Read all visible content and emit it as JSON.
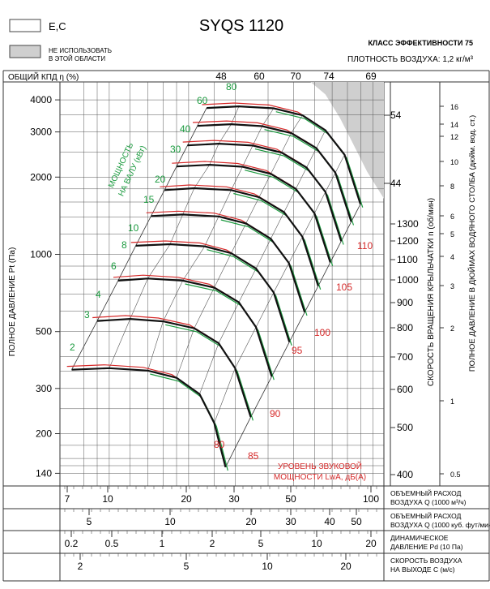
{
  "header": {
    "legend_white_label": "E,C",
    "legend_grey_label_1": "НЕ ИСПОЛЬЗОВАТЬ",
    "legend_grey_label_2": "В ЭТОЙ ОБЛАСТИ",
    "model": "SYQS 1120",
    "efficiency_class": "КЛАСС ЭФФЕКТИВНОСТИ 75",
    "air_density": "ПЛОТНОСТЬ ВОЗДУХА: 1,2 кг/м³"
  },
  "colors": {
    "speed_curve": "#111111",
    "efficiency_curve": "#d62a2a",
    "power_curve": "#1a9a3e",
    "power_label": "#1a9a3e",
    "sound_label": "#d62a2a",
    "grid": "#555555",
    "forbidden_area": "#cfcfcf"
  },
  "chart_data": {
    "type": "line",
    "title": "SYQS 1120",
    "ylabel_left": "ПОЛНОЕ ДАВЛЕНИЕ Pt (Па)",
    "ylabel_right_1": "СКОРОСТЬ ВРАЩЕНИЯ КРЫЛЬЧАТКИ  n (об/мин)",
    "ylabel_right_2": "ПОЛНОЕ ДАВЛЕНИЕ В ДЮЙМАХ ВОДЯНОГО СТОЛБА (дюйм. вод. ст.)",
    "efficiency_axis_label": "ОБЩИЙ КПД η (%)",
    "power_axis_label_1": "МОЩНОСТЬ",
    "power_axis_label_2": "НА ВАЛУ (кВт)",
    "sound_axis_label_1": "УРОВЕНЬ ЗВУКОВОЙ",
    "sound_axis_label_2": "МОЩНОСТИ LwA, дБ(А)",
    "log_scale": true,
    "pressure_ticks": [
      140,
      200,
      300,
      500,
      1000,
      2000,
      3000,
      4000
    ],
    "inch_ticks": [
      "0.5",
      "1",
      "2",
      "3",
      "4",
      "5",
      "6",
      "8",
      "10",
      "12",
      "14",
      "16"
    ],
    "rpm_ticks": [
      "400",
      "500",
      "600",
      "700",
      "800",
      "900",
      "1000",
      "1100",
      "1200",
      "1300"
    ],
    "rpm_extra_ticks": [
      "44",
      "54"
    ],
    "efficiency_ticks": [
      "48",
      "60",
      "70",
      "74",
      "69"
    ],
    "power_labels": [
      "2",
      "3",
      "4",
      "6",
      "8",
      "10",
      "15",
      "20",
      "30",
      "40",
      "60",
      "80"
    ],
    "sound_labels": [
      "80",
      "85",
      "90",
      "95",
      "100",
      "105",
      "110"
    ],
    "xaxes": [
      {
        "label": [
          "ОБЪЕМНЫЙ РАСХОД",
          "ВОЗДУХА Q (1000 м³/ч)"
        ],
        "ticks": [
          "7",
          "10",
          "20",
          "30",
          "50",
          "100"
        ]
      },
      {
        "label": [
          "ОБЪЕМНЫЙ РАСХОД",
          "ВОЗДУХА Q (1000 куб. фут/мин)"
        ],
        "ticks": [
          "5",
          "10",
          "20",
          "30",
          "40",
          "50"
        ]
      },
      {
        "label": [
          "ДИНАМИЧЕСКОЕ",
          "ДАВЛЕНИЕ Pd (10 Па)"
        ],
        "ticks": [
          "0.2",
          "0.5",
          "1",
          "2",
          "5",
          "10",
          "20"
        ]
      },
      {
        "label": [
          "СКОРОСТЬ ВОЗДУХА",
          "НА ВЫХОДЕ С (м/с)"
        ],
        "ticks": [
          "2",
          "5",
          "10",
          "20"
        ]
      }
    ],
    "series": [
      {
        "rpm": 400,
        "q": [
          7.2,
          10,
          14,
          18,
          22,
          25,
          27.6
        ],
        "pt": [
          355,
          360,
          352,
          330,
          285,
          220,
          148
        ]
      },
      {
        "rpm": 500,
        "q": [
          9,
          12,
          16,
          21,
          26,
          30,
          34.4
        ],
        "pt": [
          550,
          560,
          548,
          515,
          450,
          360,
          232
        ]
      },
      {
        "rpm": 600,
        "q": [
          10.8,
          14,
          19,
          25,
          31,
          36,
          41.3
        ],
        "pt": [
          790,
          805,
          790,
          742,
          650,
          520,
          334
        ]
      },
      {
        "rpm": 700,
        "q": [
          12.6,
          17,
          23,
          29,
          36,
          42,
          48.2
        ],
        "pt": [
          1080,
          1095,
          1075,
          1010,
          880,
          710,
          455
        ]
      },
      {
        "rpm": 800,
        "q": [
          14.4,
          19,
          26,
          33,
          41,
          48,
          55.1
        ],
        "pt": [
          1410,
          1430,
          1405,
          1320,
          1150,
          925,
          595
        ]
      },
      {
        "rpm": 900,
        "q": [
          16.2,
          21,
          29,
          37,
          46,
          54,
          62
        ],
        "pt": [
          1780,
          1810,
          1780,
          1670,
          1460,
          1170,
          752
        ]
      },
      {
        "rpm": 1000,
        "q": [
          18,
          24,
          32,
          41,
          51,
          60,
          68.9
        ],
        "pt": [
          2200,
          2235,
          2195,
          2060,
          1800,
          1445,
          930
        ]
      },
      {
        "rpm": 1100,
        "q": [
          19.8,
          26,
          35,
          45,
          56,
          66,
          75.8
        ],
        "pt": [
          2660,
          2700,
          2655,
          2495,
          2180,
          1750,
          1125
        ]
      },
      {
        "rpm": 1200,
        "q": [
          21.6,
          29,
          38,
          49,
          61,
          72,
          82.7
        ],
        "pt": [
          3170,
          3215,
          3160,
          2970,
          2595,
          2080,
          1340
        ]
      },
      {
        "rpm": 1300,
        "q": [
          23.4,
          31,
          42,
          54,
          66,
          78,
          89.6
        ],
        "pt": [
          3720,
          3775,
          3710,
          3485,
          3045,
          2445,
          1570
        ]
      }
    ]
  }
}
